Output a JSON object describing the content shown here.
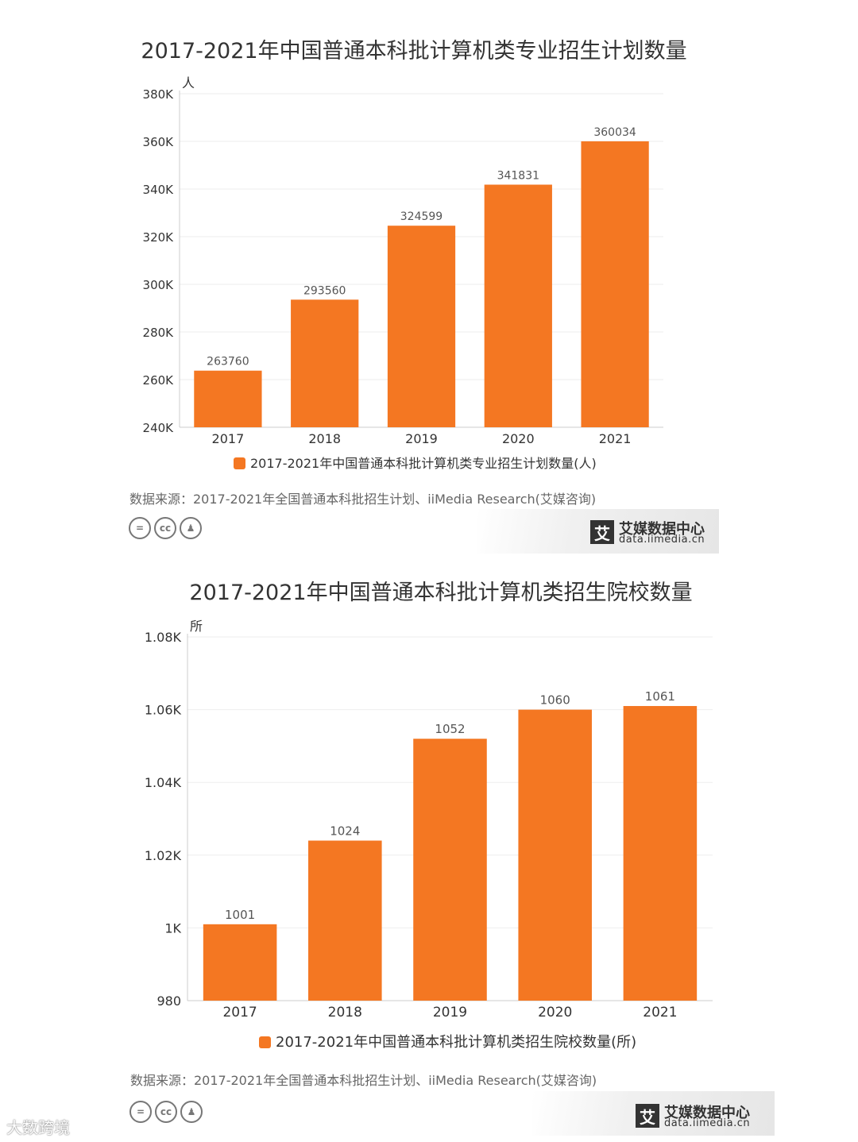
{
  "charts": [
    {
      "title": "2017-2021年中国普通本科批计算机类专业招生计划数量",
      "source": "数据来源：2017-2021年全国普通本科批招生计划、iiMedia Research(艾媒咨询)",
      "brand": {
        "name": "艾媒数据中心",
        "url": "data.iimedia.cn",
        "mark": "艾"
      },
      "license_icons": [
        "equals-icon",
        "cc-icon",
        "person-icon"
      ]
    },
    {
      "title": "2017-2021年中国普通本科批计算机类招生院校数量",
      "source": "数据来源：2017-2021年全国普通本科批招生计划、iiMedia Research(艾媒咨询)",
      "brand": {
        "name": "艾媒数据中心",
        "url": "data.iimedia.cn",
        "mark": "艾"
      },
      "license_icons": [
        "equals-icon",
        "cc-icon",
        "person-icon"
      ]
    }
  ],
  "watermark": "大数跨境",
  "colors": {
    "bar": "#F47722",
    "axis_text": "#333333",
    "grid": "#EEEEEE"
  },
  "chart_data": [
    {
      "type": "bar",
      "title": "2017-2021年中国普通本科批计算机类专业招生计划数量",
      "categories": [
        "2017",
        "2018",
        "2019",
        "2020",
        "2021"
      ],
      "series": [
        {
          "name": "2017-2021年中国普通本科批计算机类专业招生计划数量(人)",
          "values": [
            263760,
            293560,
            324599,
            341831,
            360034
          ]
        }
      ],
      "data_labels": [
        "263760",
        "293560",
        "324599",
        "341831",
        "360034"
      ],
      "unit": "人",
      "ylim": [
        240000,
        380000
      ],
      "yticks": [
        240000,
        260000,
        280000,
        300000,
        320000,
        340000,
        360000,
        380000
      ],
      "ytick_labels": [
        "240K",
        "260K",
        "280K",
        "300K",
        "320K",
        "340K",
        "360K",
        "380K"
      ],
      "grid": true,
      "legend": "bottom"
    },
    {
      "type": "bar",
      "title": "2017-2021年中国普通本科批计算机类招生院校数量",
      "categories": [
        "2017",
        "2018",
        "2019",
        "2020",
        "2021"
      ],
      "series": [
        {
          "name": "2017-2021年中国普通本科批计算机类招生院校数量(所)",
          "values": [
            1001,
            1024,
            1052,
            1060,
            1061
          ]
        }
      ],
      "data_labels": [
        "1001",
        "1024",
        "1052",
        "1060",
        "1061"
      ],
      "unit": "所",
      "ylim": [
        980,
        1080
      ],
      "yticks": [
        980,
        1000,
        1020,
        1040,
        1060,
        1080
      ],
      "ytick_labels": [
        "980",
        "1K",
        "1.02K",
        "1.04K",
        "1.06K",
        "1.08K"
      ],
      "grid": true,
      "legend": "bottom"
    }
  ]
}
